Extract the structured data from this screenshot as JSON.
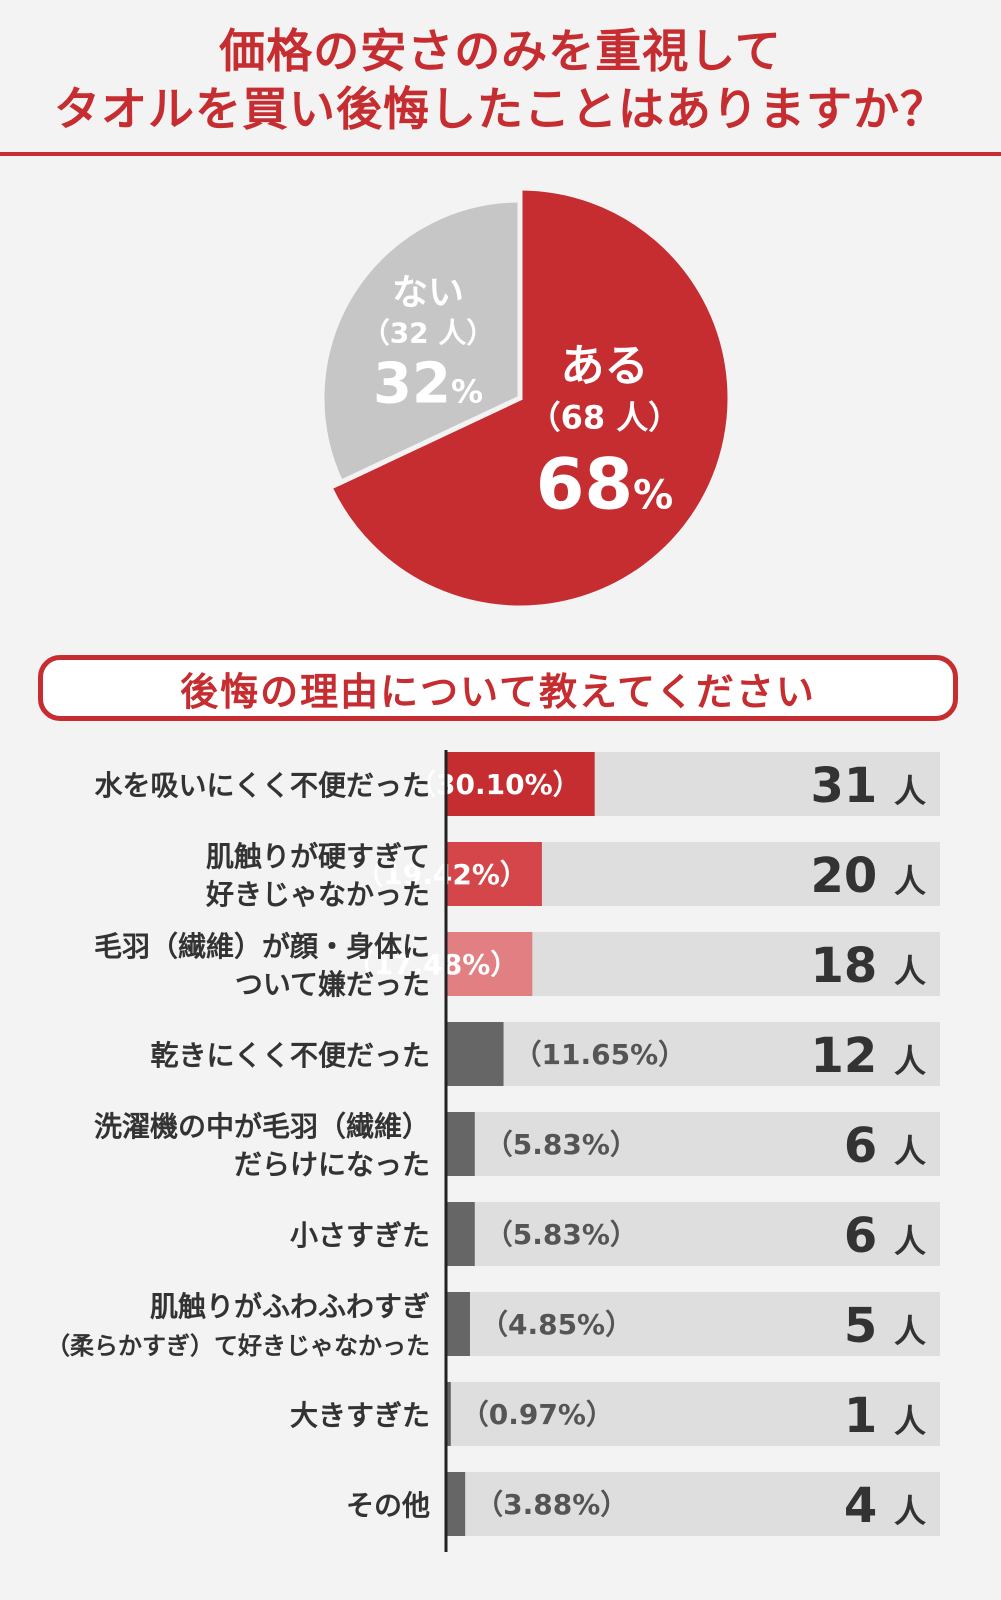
{
  "title": {
    "line1": "価格の安さのみを重視して",
    "line2": "タオルを買い後悔したことはありますか？"
  },
  "colors": {
    "red": "#c62d31",
    "red_mid": "#d4464a",
    "red_light": "#e27f82",
    "dark_gray": "#666666",
    "pie_gray": "#c6c6c6",
    "track": "#dedede"
  },
  "pie": {
    "slices": [
      {
        "label": "ある",
        "count_text": "（68 人）",
        "pct_num": "68",
        "pct_unit": "%",
        "value": 68,
        "color": "#c62d31",
        "text_color": "#ffffff"
      },
      {
        "label": "ない",
        "count_text": "（32 人）",
        "pct_num": "32",
        "pct_unit": "%",
        "value": 32,
        "color": "#c6c6c6",
        "text_color": "#ffffff"
      }
    ]
  },
  "banner": {
    "text": "後悔の理由について教えてください"
  },
  "chart_data": {
    "type": "bar",
    "orientation": "horizontal",
    "unit": "人",
    "categories": [
      [
        "水を吸いにくく不便だった"
      ],
      [
        "肌触りが硬すぎて",
        "好きじゃなかった"
      ],
      [
        "毛羽（繊維）が顔・身体に",
        "ついて嫌だった"
      ],
      [
        "乾きにくく不便だった"
      ],
      [
        "洗濯機の中が毛羽（繊維）",
        "だらけになった"
      ],
      [
        "小さすぎた"
      ],
      [
        "肌触りがふわふわすぎ",
        "（柔らかすぎ）て好きじゃなかった"
      ],
      [
        "大きすぎた"
      ],
      [
        "その他"
      ]
    ],
    "values": [
      31,
      20,
      18,
      12,
      6,
      6,
      5,
      1,
      4
    ],
    "value_labels": [
      "31",
      "20",
      "18",
      "12",
      "6",
      "6",
      "5",
      "1",
      "4"
    ],
    "percent_labels": [
      "30.10%",
      "19.42%",
      "17.48%",
      "11.65%",
      "5.83%",
      "5.83%",
      "4.85%",
      "0.97%",
      "3.88%"
    ],
    "bar_colors": [
      "#c62d31",
      "#d4464a",
      "#e27f82",
      "#666666",
      "#666666",
      "#666666",
      "#666666",
      "#666666",
      "#666666"
    ],
    "percent_label_colors": [
      "#ffffff",
      "#ffffff",
      "#ffffff",
      "#555555",
      "#555555",
      "#555555",
      "#555555",
      "#555555",
      "#555555"
    ],
    "xlim": [
      0,
      103
    ]
  }
}
